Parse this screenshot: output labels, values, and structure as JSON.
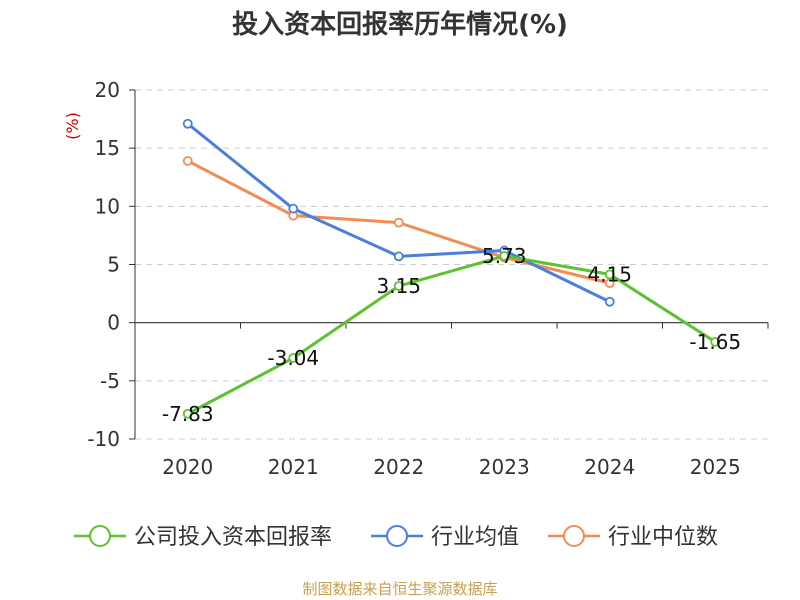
{
  "title": "投入资本回报率历年情况(%)",
  "source": "制图数据来自恒生聚源数据库",
  "chart_data": {
    "type": "line",
    "title": "投入资本回报率历年情况(%)",
    "categories": [
      "2020",
      "2021",
      "2022",
      "2023",
      "2024",
      "2025"
    ],
    "ylabel": "(%)",
    "ylim": [
      -10,
      20
    ],
    "yticks": [
      20,
      15,
      10,
      5,
      0,
      -5,
      -10
    ],
    "grid": true,
    "legend_position": "bottom",
    "series": [
      {
        "name": "公司投入资本回报率",
        "color": "#5cc22e",
        "values": [
          -7.83,
          -3.04,
          3.15,
          5.73,
          4.15,
          -1.65
        ],
        "labels": [
          "-7.83",
          "-3.04",
          "3.15",
          "5.73",
          "4.15",
          "-1.65"
        ]
      },
      {
        "name": "行业均值",
        "color": "#4a7fdc",
        "values": [
          17.1,
          9.8,
          5.7,
          6.2,
          1.8,
          null
        ]
      },
      {
        "name": "行业中位数",
        "color": "#f28c55",
        "values": [
          13.9,
          9.2,
          8.6,
          5.6,
          3.4,
          null
        ]
      }
    ]
  }
}
